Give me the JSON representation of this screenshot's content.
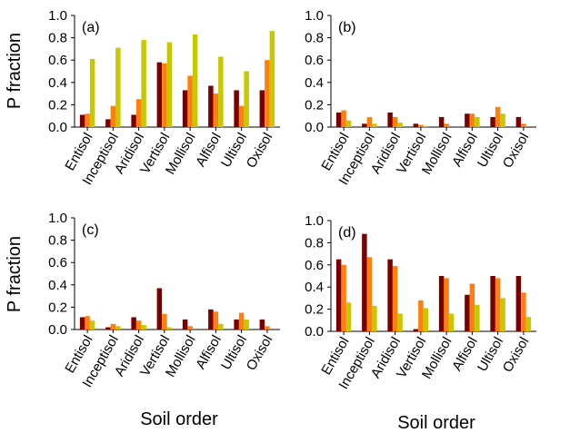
{
  "colors": {
    "series1": "#7a0000",
    "series2": "#ff7f0e",
    "series3": "#c8c800"
  },
  "axis_titles": {
    "ylabel_top": "P fraction",
    "ylabel_bottom": "P fraction",
    "xlabel_left": "Soil order",
    "xlabel_right": "Soil order"
  },
  "chart_data": [
    {
      "type": "bar",
      "panel_label": "(a)",
      "categories": [
        "Entisol",
        "Inceptisol",
        "Aridisol",
        "Vertisol",
        "Mollisol",
        "Alfisol",
        "Ultisol",
        "Oxisol"
      ],
      "series": [
        {
          "values": [
            0.11,
            0.07,
            0.11,
            0.58,
            0.33,
            0.37,
            0.33,
            0.33
          ]
        },
        {
          "values": [
            0.12,
            0.19,
            0.25,
            0.57,
            0.46,
            0.3,
            0.19,
            0.6
          ]
        },
        {
          "values": [
            0.61,
            0.71,
            0.78,
            0.76,
            0.83,
            0.63,
            0.5,
            0.86
          ]
        }
      ],
      "ylim": [
        0,
        1.0
      ],
      "yticks": [
        "0.0",
        "0.2",
        "0.4",
        "0.6",
        "0.8",
        "1.0"
      ]
    },
    {
      "type": "bar",
      "panel_label": "(b)",
      "categories": [
        "Entisol",
        "Inceptisol",
        "Aridisol",
        "Vertisol",
        "Mollisol",
        "Alfisol",
        "Ultisol",
        "Oxisol"
      ],
      "series": [
        {
          "values": [
            0.13,
            0.03,
            0.13,
            0.03,
            0.09,
            0.12,
            0.09,
            0.09
          ]
        },
        {
          "values": [
            0.15,
            0.09,
            0.09,
            0.02,
            0.03,
            0.12,
            0.18,
            0.03
          ]
        },
        {
          "values": [
            0.06,
            0.03,
            0.04,
            0.01,
            0.0,
            0.09,
            0.12,
            0.0
          ]
        }
      ],
      "ylim": [
        0,
        1.0
      ],
      "yticks": [
        "0.0",
        "0.2",
        "0.4",
        "0.6",
        "0.8",
        "1.0"
      ]
    },
    {
      "type": "bar",
      "panel_label": "(c)",
      "categories": [
        "Entisol",
        "Inceptisol",
        "Aridisol",
        "Vertisol",
        "Mollisol",
        "Alfisol",
        "Ultisol",
        "Oxisol"
      ],
      "series": [
        {
          "values": [
            0.11,
            0.02,
            0.11,
            0.37,
            0.09,
            0.18,
            0.09,
            0.09
          ]
        },
        {
          "values": [
            0.12,
            0.05,
            0.08,
            0.14,
            0.03,
            0.16,
            0.15,
            0.03
          ]
        },
        {
          "values": [
            0.08,
            0.03,
            0.04,
            0.02,
            0.0,
            0.05,
            0.09,
            0.0
          ]
        }
      ],
      "ylim": [
        0,
        1.0
      ],
      "yticks": [
        "0.0",
        "0.2",
        "0.4",
        "0.6",
        "0.8",
        "1.0"
      ]
    },
    {
      "type": "bar",
      "panel_label": "(d)",
      "categories": [
        "Entisol",
        "Inceptisol",
        "Aridisol",
        "Vertisol",
        "Mollisol",
        "Alfisol",
        "Ultisol",
        "Oxisol"
      ],
      "series": [
        {
          "values": [
            0.65,
            0.88,
            0.65,
            0.02,
            0.5,
            0.33,
            0.5,
            0.5
          ]
        },
        {
          "values": [
            0.6,
            0.67,
            0.59,
            0.28,
            0.48,
            0.43,
            0.48,
            0.35
          ]
        },
        {
          "values": [
            0.26,
            0.23,
            0.16,
            0.21,
            0.16,
            0.24,
            0.3,
            0.13
          ]
        }
      ],
      "ylim": [
        0,
        1.0
      ],
      "yticks": [
        "0.0",
        "0.2",
        "0.4",
        "0.6",
        "0.8",
        "1.0"
      ]
    }
  ]
}
